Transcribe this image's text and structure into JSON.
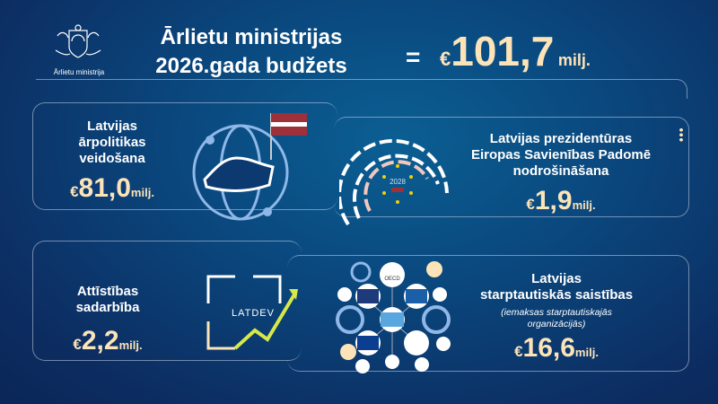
{
  "logo": {
    "caption": "Ārlietu ministrija"
  },
  "header": {
    "title_line1": "Ārlietu ministrijas",
    "title_line2": "2026.gada budžets",
    "equals": "=",
    "total": {
      "currency": "€",
      "value": "101,7",
      "unit": "milj."
    }
  },
  "sections": [
    {
      "title_lines": [
        "Latvijas",
        "ārpolitikas",
        "veidošana"
      ],
      "amount": {
        "currency": "€",
        "value": "81,0",
        "unit": "milj."
      },
      "icon": "globe-latvia-flag-icon"
    },
    {
      "title_lines": [
        "Latvijas prezidentūras",
        "Eiropas Savienības Padomē",
        "nodrošināšana"
      ],
      "amount": {
        "currency": "€",
        "value": "1,9",
        "unit": "milj."
      },
      "icon": "eu-parliament-icon",
      "badge": "2028"
    },
    {
      "title_lines": [
        "Attīstības",
        "sadarbība"
      ],
      "amount": {
        "currency": "€",
        "value": "2,2",
        "unit": "milj."
      },
      "icon": "latdev-puzzle-icon",
      "logo_text": "LATDEV"
    },
    {
      "title_lines": [
        "Latvijas",
        "starptautiskās saistības"
      ],
      "subtitle_lines": [
        "(iemaksas starptautiskajās",
        "organizācijās)"
      ],
      "amount": {
        "currency": "€",
        "value": "16,6",
        "unit": "milj."
      },
      "icon": "international-organizations-network-icon",
      "org_labels": [
        "OECD"
      ]
    }
  ],
  "colors": {
    "accent": "#fde4b8",
    "background": "#0c3a70",
    "flag_red": "#9e3039"
  }
}
